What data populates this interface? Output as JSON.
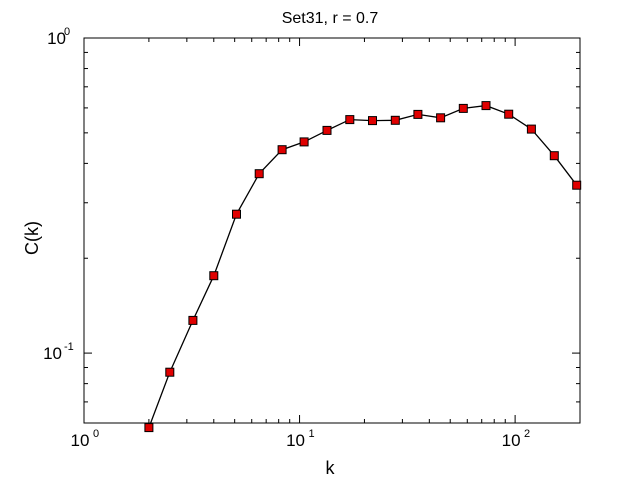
{
  "chart_data": {
    "type": "line",
    "title": "Set31, r = 0.7",
    "xlabel": "k",
    "ylabel": "C(k)",
    "xscale": "log",
    "yscale": "log",
    "xlim": [
      1,
      200
    ],
    "ylim": [
      0.06,
      1
    ],
    "grid": false,
    "x_ticks": [
      {
        "value": 1,
        "base": "10",
        "exp": "0"
      },
      {
        "value": 10,
        "base": "10",
        "exp": "1"
      },
      {
        "value": 100,
        "base": "10",
        "exp": "2"
      }
    ],
    "y_ticks": [
      {
        "value": 0.1,
        "base": "10",
        "exp": "-1"
      },
      {
        "value": 1,
        "base": "10",
        "exp": "0"
      }
    ],
    "series": [
      {
        "color": "#000000",
        "marker": "square",
        "marker_fill": "#e00000",
        "x": [
          2,
          2.5,
          3.2,
          4,
          5.1,
          6.5,
          8.3,
          10.5,
          13.4,
          17.1,
          21.8,
          27.8,
          35.4,
          45.1,
          57.5,
          73.3,
          93.4,
          119,
          152,
          193
        ],
        "y": [
          0.058,
          0.087,
          0.127,
          0.176,
          0.276,
          0.371,
          0.442,
          0.468,
          0.509,
          0.551,
          0.547,
          0.548,
          0.572,
          0.558,
          0.598,
          0.61,
          0.573,
          0.514,
          0.423,
          0.341
        ]
      }
    ]
  }
}
